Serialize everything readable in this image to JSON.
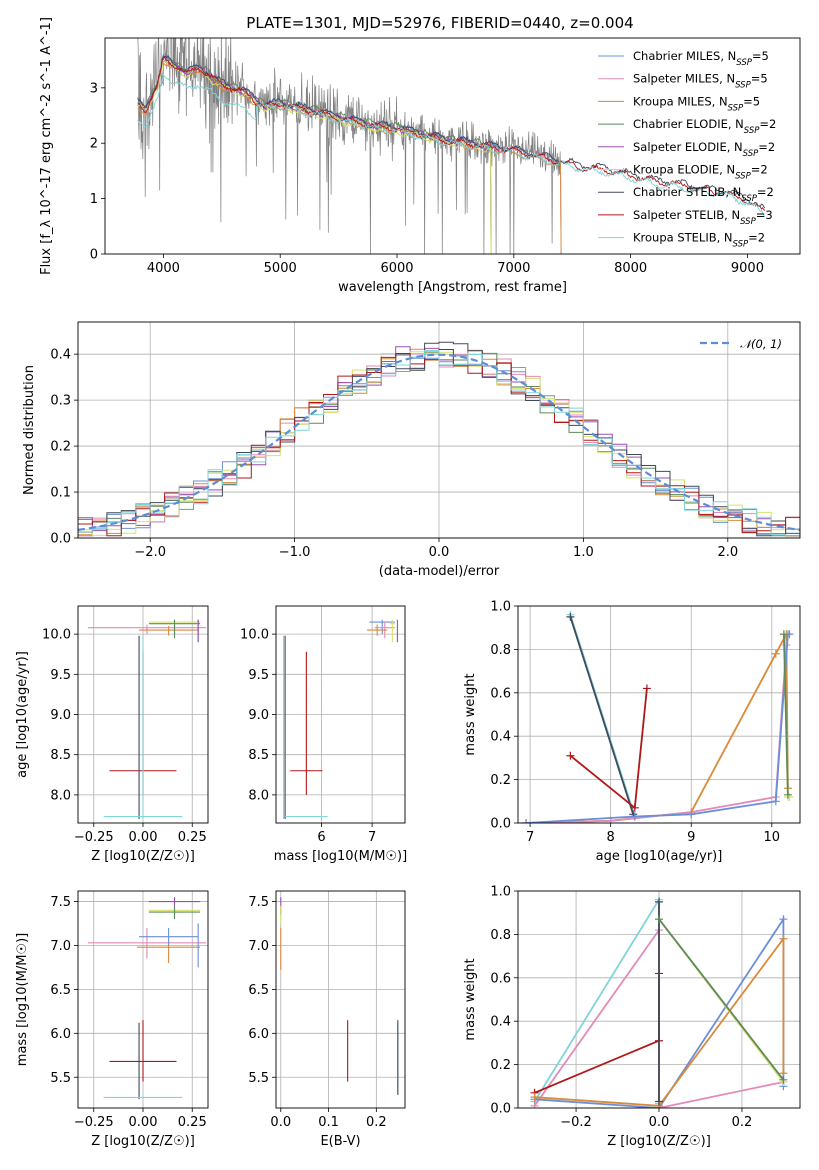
{
  "colors": {
    "Chabrier MILES": "#6a8fd8",
    "Salpeter MILES": "#e28bb8",
    "Kroupa MILES": "#d98a3a",
    "Chabrier ELODIE": "#5c8a5c",
    "Salpeter ELODIE": "#9b4fb0",
    "Kroupa ELODIE": "#d8e06a",
    "Chabrier STELIB": "#404a5a",
    "Salpeter STELIB": "#b01818",
    "Kroupa STELIB": "#80d4dc",
    "data": "#808080",
    "normal": "#5b8ed6"
  },
  "chart_data": [
    {
      "id": "spectrum",
      "type": "line",
      "title": "PLATE=1301, MJD=52976, FIBERID=0440, z=0.004",
      "xlabel": "wavelength [Angstrom, rest frame]",
      "ylabel": "Flux [f_λ 10^-17 erg cm^-2 s^-1 A^-1]",
      "xlim": [
        3500,
        9450
      ],
      "ylim": [
        0,
        3.9
      ],
      "xticks": [
        4000,
        5000,
        6000,
        7000,
        8000,
        9000
      ],
      "yticks": [
        0,
        1,
        2,
        3
      ],
      "legend": "top-right",
      "series": [
        {
          "name": "Chabrier MILES",
          "sup": "SSP",
          "n": "5",
          "key": "Chabrier MILES"
        },
        {
          "name": "Salpeter MILES",
          "sup": "SSP",
          "n": "5",
          "key": "Salpeter MILES"
        },
        {
          "name": "Kroupa MILES",
          "sup": "SSP",
          "n": "5",
          "key": "Kroupa MILES"
        },
        {
          "name": "Chabrier ELODIE",
          "sup": "SSP",
          "n": "2",
          "key": "Chabrier ELODIE"
        },
        {
          "name": "Salpeter ELODIE",
          "sup": "SSP",
          "n": "2",
          "key": "Salpeter ELODIE"
        },
        {
          "name": "Kroupa ELODIE",
          "sup": "SSP",
          "n": "2",
          "key": "Kroupa ELODIE"
        },
        {
          "name": "Chabrier STELIB",
          "sup": "SSP",
          "n": "2",
          "key": "Chabrier STELIB"
        },
        {
          "name": "Salpeter STELIB",
          "sup": "SSP",
          "n": "3",
          "key": "Salpeter STELIB"
        },
        {
          "name": "Kroupa STELIB",
          "sup": "SSP",
          "n": "2",
          "key": "Kroupa STELIB"
        }
      ],
      "model_continuum": {
        "x": [
          3780,
          3850,
          3950,
          4000,
          4100,
          4200,
          4300,
          4400,
          4500,
          4700,
          4860,
          5000,
          5200,
          5400,
          5600,
          5800,
          6000,
          6200,
          6400,
          6563,
          6700,
          7000,
          7200,
          7400,
          7600,
          7800,
          8000,
          8200,
          8400,
          8600,
          8800,
          9000,
          9150
        ],
        "y": [
          2.75,
          2.65,
          3.1,
          3.55,
          3.45,
          3.3,
          3.4,
          3.25,
          3.1,
          2.95,
          2.7,
          2.75,
          2.65,
          2.55,
          2.45,
          2.35,
          2.3,
          2.2,
          2.1,
          2.05,
          2.0,
          1.9,
          1.8,
          1.7,
          1.6,
          1.55,
          1.45,
          1.35,
          1.3,
          1.2,
          1.15,
          1.0,
          0.8
        ]
      },
      "data_noise": {
        "x_start": 3780,
        "x_end": 7400,
        "x_end_tail": 7420
      }
    },
    {
      "id": "residuals",
      "type": "histogram",
      "xlabel": "(data-model)/error",
      "ylabel": "Normed distribution",
      "xlim": [
        -2.5,
        2.5
      ],
      "ylim": [
        0,
        0.47
      ],
      "xticks": [
        -2,
        -1,
        0,
        1,
        2
      ],
      "yticks": [
        0.0,
        0.1,
        0.2,
        0.3,
        0.4
      ],
      "legend": "top-right",
      "normal_label": "𝒩(0, 1)"
    },
    {
      "id": "age-vs-Z",
      "type": "scatter",
      "xlabel": "Z [log10(Z/Z☉)]",
      "ylabel": "age [log10(age/yr)]",
      "xlim": [
        -0.33,
        0.33
      ],
      "ylim": [
        7.65,
        10.35
      ],
      "xticks": [
        -0.25,
        0.0,
        0.25
      ],
      "yticks": [
        8.0,
        8.5,
        9.0,
        9.5,
        10.0
      ],
      "points": [
        {
          "key": "Salpeter STELIB",
          "x": 0.0,
          "y": 8.3,
          "xe": 0.17,
          "ye": [
            8.0,
            9.78
          ]
        },
        {
          "key": "Chabrier STELIB",
          "x": -0.02,
          "y": 7.73,
          "xe": 0.0,
          "ye": [
            7.7,
            9.98
          ]
        },
        {
          "key": "Kroupa STELIB",
          "x": 0.0,
          "y": 7.73,
          "xe": 0.2,
          "ye": [
            7.7,
            9.98
          ]
        },
        {
          "key": "Salpeter MILES",
          "x": 0.02,
          "y": 10.08,
          "xe": 0.3,
          "ye": [
            10.0,
            10.12
          ]
        },
        {
          "key": "Kroupa MILES",
          "x": 0.13,
          "y": 10.05,
          "xe": 0.15,
          "ye": [
            9.98,
            10.1
          ]
        },
        {
          "key": "Kroupa ELODIE",
          "x": 0.16,
          "y": 10.15,
          "xe": 0.13,
          "ye": [
            9.95,
            10.18
          ]
        },
        {
          "key": "Chabrier ELODIE",
          "x": 0.16,
          "y": 10.13,
          "xe": 0.13,
          "ye": [
            9.95,
            10.18
          ]
        },
        {
          "key": "Chabrier MILES",
          "x": 0.28,
          "y": 10.1,
          "xe": 0.0,
          "ye": [
            9.9,
            10.18
          ]
        },
        {
          "key": "Salpeter ELODIE",
          "x": 0.28,
          "y": 10.12,
          "xe": 0.0,
          "ye": [
            9.9,
            10.18
          ]
        }
      ]
    },
    {
      "id": "age-vs-mass",
      "type": "scatter",
      "xlabel": "mass [log10(M/M☉)]",
      "ylabel": "",
      "xlim": [
        5.1,
        7.65
      ],
      "ylim": [
        7.65,
        10.35
      ],
      "xticks": [
        6,
        7
      ],
      "yticks": [
        8.0,
        8.5,
        9.0,
        9.5,
        10.0
      ],
      "points": [
        {
          "key": "Salpeter STELIB",
          "x": 5.7,
          "y": 8.3,
          "xe": 0.32,
          "ye": [
            8.0,
            9.78
          ]
        },
        {
          "key": "Chabrier STELIB",
          "x": 5.28,
          "y": 7.73,
          "xe": 0.0,
          "ye": [
            7.7,
            9.98
          ]
        },
        {
          "key": "Kroupa STELIB",
          "x": 5.25,
          "y": 7.73,
          "xe": 0.0,
          "ye": [
            7.7,
            9.98
          ]
        },
        {
          "key": "Kroupa STELIB",
          "x": 5.7,
          "y": 7.73,
          "xe": 0.42,
          "ye": [
            7.73,
            7.73
          ]
        },
        {
          "key": "Chabrier MILES",
          "x": 7.2,
          "y": 10.15,
          "xe": 0.25,
          "ye": [
            10.0,
            10.18
          ]
        },
        {
          "key": "Salpeter MILES",
          "x": 7.25,
          "y": 10.08,
          "xe": 0.2,
          "ye": [
            9.95,
            10.15
          ]
        },
        {
          "key": "Kroupa MILES",
          "x": 7.1,
          "y": 10.05,
          "xe": 0.2,
          "ye": [
            9.98,
            10.12
          ]
        },
        {
          "key": "Kroupa ELODIE",
          "x": 7.4,
          "y": 10.13,
          "xe": 0.05,
          "ye": [
            9.9,
            10.18
          ]
        },
        {
          "key": "Salpeter ELODIE",
          "x": 7.5,
          "y": 10.12,
          "xe": 0.0,
          "ye": [
            9.9,
            10.18
          ]
        }
      ]
    },
    {
      "id": "weight-vs-age",
      "type": "line",
      "xlabel": "age [log10(age/yr)]",
      "ylabel": "mass weight",
      "xlim": [
        6.85,
        10.35
      ],
      "ylim": [
        0,
        1.0
      ],
      "xticks": [
        7,
        8,
        9,
        10
      ],
      "yticks": [
        0.0,
        0.2,
        0.4,
        0.6,
        0.8,
        1.0
      ],
      "series": [
        {
          "key": "Kroupa STELIB",
          "x": [
            7.5,
            8.3,
            8.3
          ],
          "y": [
            0.96,
            0.03,
            0.03
          ]
        },
        {
          "key": "Chabrier STELIB",
          "x": [
            7.5,
            8.28,
            8.3
          ],
          "y": [
            0.95,
            0.04,
            0.03
          ]
        },
        {
          "key": "Salpeter STELIB",
          "x": [
            7.5,
            8.3,
            8.45
          ],
          "y": [
            0.31,
            0.07,
            0.62
          ]
        },
        {
          "key": "Kroupa MILES",
          "x": [
            6.95,
            8.0,
            9.0,
            10.05,
            10.18,
            10.2
          ],
          "y": [
            0.0,
            0.01,
            0.05,
            0.78,
            0.87,
            0.16
          ]
        },
        {
          "key": "Salpeter MILES",
          "x": [
            6.95,
            8.0,
            9.0,
            10.05,
            10.18
          ],
          "y": [
            0.0,
            0.01,
            0.05,
            0.12,
            0.82
          ]
        },
        {
          "key": "Chabrier MILES",
          "x": [
            6.95,
            8.3,
            9.0,
            10.05,
            10.2,
            10.22
          ],
          "y": [
            0.0,
            0.03,
            0.04,
            0.1,
            0.87,
            0.87
          ]
        },
        {
          "key": "Kroupa ELODIE",
          "x": [
            10.15,
            10.2,
            10.22
          ],
          "y": [
            0.87,
            0.12,
            0.12
          ]
        },
        {
          "key": "Chabrier ELODIE",
          "x": [
            10.15,
            10.2
          ],
          "y": [
            0.87,
            0.13
          ]
        }
      ]
    },
    {
      "id": "mass-vs-Z",
      "type": "scatter",
      "xlabel": "Z [log10(Z/Z☉)]",
      "ylabel": "mass [log10(M/M☉)]",
      "xlim": [
        -0.33,
        0.33
      ],
      "ylim": [
        5.15,
        7.62
      ],
      "xticks": [
        -0.25,
        0.0,
        0.25
      ],
      "yticks": [
        5.5,
        6.0,
        6.5,
        7.0,
        7.5
      ],
      "points": [
        {
          "key": "Salpeter STELIB",
          "x": 0.0,
          "y": 5.68,
          "xe": 0.17,
          "ye": [
            5.45,
            6.15
          ]
        },
        {
          "key": "Chabrier STELIB",
          "x": -0.02,
          "y": 5.27,
          "xe": 0.0,
          "ye": [
            5.25,
            6.12
          ]
        },
        {
          "key": "Kroupa STELIB",
          "x": 0.0,
          "y": 5.27,
          "xe": 0.2,
          "ye": [
            5.25,
            5.3
          ]
        },
        {
          "key": "Salpeter MILES",
          "x": 0.02,
          "y": 7.03,
          "xe": 0.3,
          "ye": [
            6.85,
            7.2
          ]
        },
        {
          "key": "Kroupa MILES",
          "x": 0.13,
          "y": 6.98,
          "xe": 0.16,
          "ye": [
            6.8,
            7.0
          ]
        },
        {
          "key": "Chabrier MILES",
          "x": 0.13,
          "y": 7.1,
          "xe": 0.15,
          "ye": [
            7.0,
            7.2
          ]
        },
        {
          "key": "Kroupa ELODIE",
          "x": 0.16,
          "y": 7.4,
          "xe": 0.13,
          "ye": [
            7.3,
            7.5
          ]
        },
        {
          "key": "Chabrier ELODIE",
          "x": 0.16,
          "y": 7.38,
          "xe": 0.13,
          "ye": [
            7.3,
            7.45
          ]
        },
        {
          "key": "Salpeter ELODIE",
          "x": 0.16,
          "y": 7.5,
          "xe": 0.13,
          "ye": [
            7.45,
            7.55
          ]
        },
        {
          "key": "Chabrier MILES",
          "x": 0.28,
          "y": 7.0,
          "xe": 0.0,
          "ye": [
            6.75,
            7.25
          ]
        }
      ]
    },
    {
      "id": "mass-vs-EBV",
      "type": "scatter",
      "xlabel": "E(B-V)",
      "ylabel": "",
      "xlim": [
        -0.01,
        0.26
      ],
      "ylim": [
        5.15,
        7.62
      ],
      "xticks": [
        0.0,
        0.1,
        0.2
      ],
      "yticks": [
        5.5,
        6.0,
        6.5,
        7.0,
        7.5
      ],
      "points": [
        {
          "key": "Salpeter ELODIE",
          "x": 0.0,
          "y": 7.45,
          "xe": 0.0,
          "ye": [
            7.35,
            7.55
          ]
        },
        {
          "key": "Kroupa ELODIE",
          "x": 0.0,
          "y": 7.38,
          "xe": 0.0,
          "ye": [
            7.25,
            7.45
          ]
        },
        {
          "key": "Kroupa MILES",
          "x": 0.0,
          "y": 6.9,
          "xe": 0.0,
          "ye": [
            6.72,
            7.2
          ]
        },
        {
          "key": "Salpeter STELIB",
          "x": 0.14,
          "y": 5.8,
          "xe": 0.0,
          "ye": [
            5.45,
            6.15
          ]
        },
        {
          "key": "Kroupa STELIB",
          "x": 0.245,
          "y": 5.6,
          "xe": 0.0,
          "ye": [
            5.3,
            6.1
          ]
        },
        {
          "key": "Chabrier STELIB",
          "x": 0.245,
          "y": 5.8,
          "xe": 0.0,
          "ye": [
            5.3,
            6.15
          ]
        }
      ]
    },
    {
      "id": "weight-vs-Z",
      "type": "line",
      "xlabel": "Z [log10(Z/Z☉)]",
      "ylabel": "mass weight",
      "xlim": [
        -0.34,
        0.34
      ],
      "ylim": [
        0,
        1.0
      ],
      "xticks": [
        -0.2,
        0.0,
        0.2
      ],
      "yticks": [
        0.0,
        0.2,
        0.4,
        0.6,
        0.8,
        1.0
      ],
      "series": [
        {
          "key": "Kroupa STELIB",
          "x": [
            -0.3,
            0.0,
            0.0
          ],
          "y": [
            0.03,
            0.96,
            0.02
          ]
        },
        {
          "key": "Salpeter MILES",
          "x": [
            -0.3,
            0.0,
            0.0,
            0.3
          ],
          "y": [
            0.01,
            0.82,
            0.0,
            0.12
          ]
        },
        {
          "key": "Salpeter STELIB",
          "x": [
            -0.3,
            0.0,
            0.0
          ],
          "y": [
            0.07,
            0.31,
            0.62
          ]
        },
        {
          "key": "Chabrier MILES",
          "x": [
            -0.3,
            0.0,
            0.3,
            0.3
          ],
          "y": [
            0.04,
            0.0,
            0.87,
            0.1
          ]
        },
        {
          "key": "Kroupa MILES",
          "x": [
            -0.3,
            0.0,
            0.3,
            0.3
          ],
          "y": [
            0.05,
            0.01,
            0.78,
            0.16
          ]
        },
        {
          "key": "Kroupa ELODIE",
          "x": [
            0.0,
            0.3
          ],
          "y": [
            0.87,
            0.12
          ]
        },
        {
          "key": "Chabrier STELIB",
          "x": [
            0.0,
            0.0
          ],
          "y": [
            0.95,
            0.03
          ]
        },
        {
          "key": "Chabrier ELODIE",
          "x": [
            0.0,
            0.3
          ],
          "y": [
            0.87,
            0.13
          ]
        }
      ]
    }
  ]
}
